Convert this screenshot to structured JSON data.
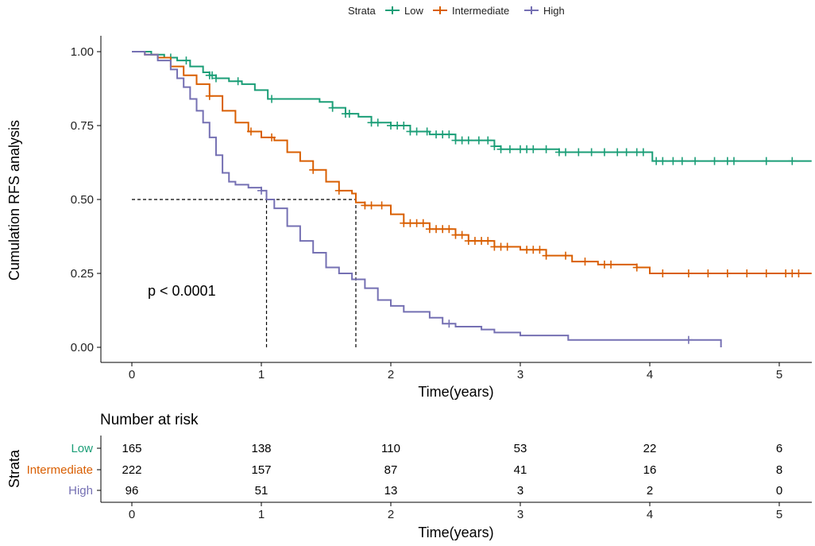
{
  "chart_data": {
    "type": "line",
    "title": "",
    "xlabel": "Time(years)",
    "ylabel": "Cumulation RFS analysis",
    "xlim": [
      -0.22,
      5.25
    ],
    "ylim": [
      -0.05,
      1.05
    ],
    "xticks": [
      0,
      1,
      2,
      3,
      4,
      5
    ],
    "xtick_labels": [
      "0",
      "1",
      "2",
      "3",
      "4",
      "5"
    ],
    "yticks": [
      0,
      0.25,
      0.5,
      0.75,
      1
    ],
    "ytick_labels": [
      "0.00",
      "0.25",
      "0.50",
      "0.75",
      "1.00"
    ],
    "legend": {
      "title": "Strata",
      "position": "top"
    },
    "annotation": "p < 0.0001",
    "median_lines": [
      {
        "strata": "High",
        "x": 1.04,
        "y": 0.5
      },
      {
        "strata": "Intermediate",
        "x": 1.73,
        "y": 0.5
      }
    ],
    "series": [
      {
        "name": "Low",
        "color": "#1B9E77",
        "x": [
          0,
          0.15,
          0.25,
          0.35,
          0.45,
          0.55,
          0.6,
          0.65,
          0.75,
          0.85,
          0.95,
          1.05,
          1.15,
          1.3,
          1.45,
          1.55,
          1.65,
          1.75,
          1.85,
          2.0,
          2.15,
          2.3,
          2.5,
          2.8,
          2.85,
          3.1,
          3.3,
          3.6,
          4.02,
          5.25
        ],
        "values": [
          1.0,
          0.99,
          0.98,
          0.97,
          0.95,
          0.93,
          0.92,
          0.91,
          0.9,
          0.89,
          0.87,
          0.84,
          0.84,
          0.84,
          0.83,
          0.81,
          0.79,
          0.78,
          0.76,
          0.75,
          0.73,
          0.72,
          0.7,
          0.68,
          0.67,
          0.67,
          0.66,
          0.66,
          0.63,
          0.63
        ],
        "censor_x": [
          0.3,
          0.42,
          0.6,
          0.62,
          0.65,
          0.82,
          1.08,
          1.55,
          1.65,
          1.68,
          1.85,
          1.9,
          2.0,
          2.05,
          2.1,
          2.15,
          2.2,
          2.28,
          2.35,
          2.4,
          2.45,
          2.5,
          2.55,
          2.6,
          2.68,
          2.75,
          2.8,
          2.85,
          2.92,
          3.0,
          3.05,
          3.1,
          3.2,
          3.3,
          3.35,
          3.45,
          3.55,
          3.65,
          3.75,
          3.82,
          3.9,
          3.95,
          4.05,
          4.1,
          4.18,
          4.25,
          4.35,
          4.5,
          4.6,
          4.65,
          4.9,
          5.1
        ]
      },
      {
        "name": "Intermediate",
        "color": "#D95F02",
        "x": [
          0,
          0.1,
          0.2,
          0.3,
          0.4,
          0.5,
          0.6,
          0.7,
          0.8,
          0.9,
          1.0,
          1.1,
          1.2,
          1.3,
          1.4,
          1.5,
          1.6,
          1.7,
          1.73,
          1.8,
          1.9,
          2.0,
          2.1,
          2.3,
          2.5,
          2.6,
          2.8,
          3.0,
          3.2,
          3.4,
          3.6,
          3.9,
          4.0,
          5.25
        ],
        "values": [
          1.0,
          0.99,
          0.98,
          0.95,
          0.92,
          0.89,
          0.85,
          0.8,
          0.76,
          0.73,
          0.71,
          0.7,
          0.66,
          0.63,
          0.6,
          0.56,
          0.53,
          0.52,
          0.49,
          0.48,
          0.48,
          0.45,
          0.42,
          0.4,
          0.38,
          0.36,
          0.34,
          0.33,
          0.31,
          0.29,
          0.28,
          0.27,
          0.25,
          0.25
        ],
        "censor_x": [
          0.6,
          0.92,
          1.08,
          1.4,
          1.6,
          1.8,
          1.85,
          1.93,
          2.1,
          2.15,
          2.2,
          2.25,
          2.3,
          2.35,
          2.4,
          2.45,
          2.5,
          2.55,
          2.6,
          2.65,
          2.7,
          2.75,
          2.8,
          2.85,
          2.9,
          3.05,
          3.1,
          3.15,
          3.2,
          3.35,
          3.5,
          3.65,
          3.7,
          3.9,
          4.1,
          4.3,
          4.45,
          4.6,
          4.75,
          4.9,
          5.05,
          5.1,
          5.15
        ]
      },
      {
        "name": "High",
        "color": "#7570B3",
        "x": [
          0,
          0.1,
          0.2,
          0.3,
          0.35,
          0.4,
          0.45,
          0.5,
          0.55,
          0.6,
          0.65,
          0.7,
          0.75,
          0.8,
          0.9,
          1.0,
          1.04,
          1.1,
          1.2,
          1.3,
          1.4,
          1.5,
          1.6,
          1.7,
          1.8,
          1.9,
          2.0,
          2.1,
          2.3,
          2.4,
          2.5,
          2.7,
          2.8,
          3.0,
          3.1,
          3.37,
          4.55
        ],
        "values": [
          1.0,
          0.99,
          0.97,
          0.94,
          0.91,
          0.88,
          0.84,
          0.8,
          0.76,
          0.71,
          0.65,
          0.59,
          0.56,
          0.55,
          0.54,
          0.53,
          0.5,
          0.47,
          0.41,
          0.36,
          0.32,
          0.27,
          0.25,
          0.23,
          0.2,
          0.16,
          0.14,
          0.12,
          0.1,
          0.08,
          0.07,
          0.06,
          0.05,
          0.04,
          0.04,
          0.025,
          0.0
        ],
        "censor_x": [
          1.0,
          2.45,
          4.3
        ]
      }
    ],
    "risk_table": {
      "title": "Number at risk",
      "ylabel": "Strata",
      "xlabel": "Time(years)",
      "times": [
        0,
        1,
        2,
        3,
        4,
        5
      ],
      "rows": [
        {
          "name": "Low",
          "color": "#1B9E77",
          "values": [
            165,
            138,
            110,
            53,
            22,
            6
          ]
        },
        {
          "name": "Intermediate",
          "color": "#D95F02",
          "values": [
            222,
            157,
            87,
            41,
            16,
            8
          ]
        },
        {
          "name": "High",
          "color": "#7570B3",
          "values": [
            96,
            51,
            13,
            3,
            2,
            0
          ]
        }
      ]
    }
  }
}
